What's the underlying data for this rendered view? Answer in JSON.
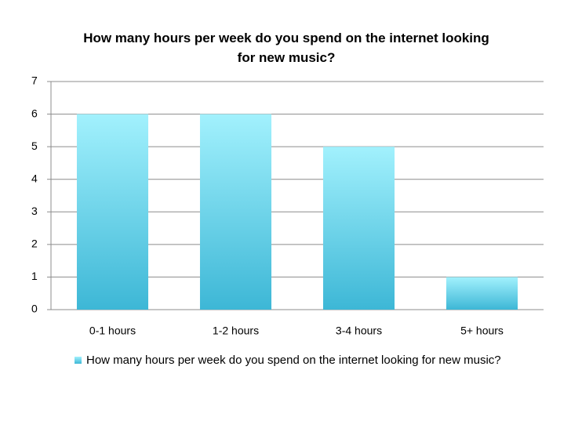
{
  "chart_data": {
    "type": "bar",
    "title": "How many hours per week do you spend on the internet looking for new music?",
    "categories": [
      "0-1 hours",
      "1-2 hours",
      "3-4 hours",
      "5+ hours"
    ],
    "series": [
      {
        "name": "How many hours per week do you spend on the internet looking for new music?",
        "color": "#3db7d6",
        "values": [
          6,
          6,
          5,
          1
        ]
      }
    ],
    "ylim": [
      0,
      7
    ],
    "yticks": [
      0,
      1,
      2,
      3,
      4,
      5,
      6,
      7
    ],
    "grid": true,
    "legend": "bottom"
  }
}
